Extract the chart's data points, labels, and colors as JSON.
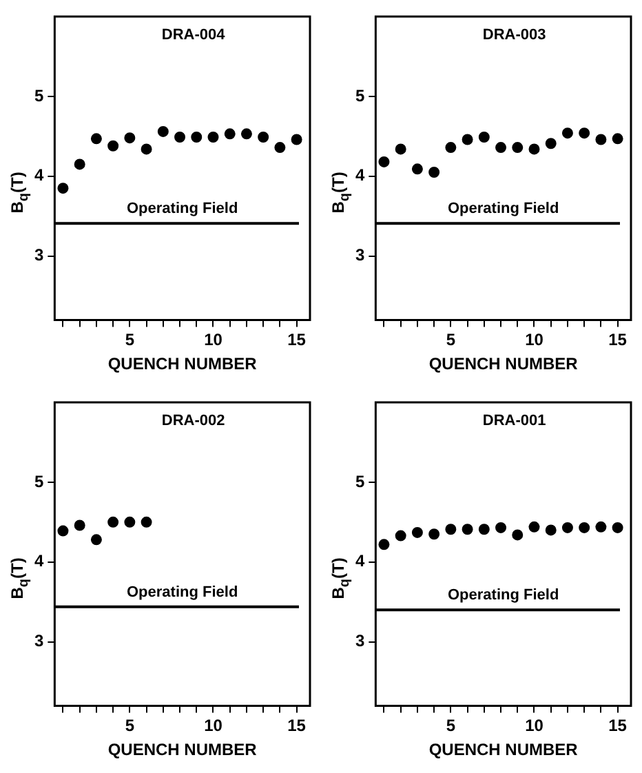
{
  "chart_data": [
    {
      "type": "scatter",
      "title": "DRA-004",
      "xlabel": "QUENCH NUMBER",
      "ylabel": "B$_{q}$(T)",
      "marker": "circle",
      "grid": false,
      "legend": false,
      "x": [
        1,
        2,
        3,
        4,
        5,
        6,
        7,
        8,
        9,
        10,
        11,
        12,
        13,
        14,
        15
      ],
      "series": [
        {
          "color": "#000000",
          "values": [
            3.85,
            4.15,
            4.47,
            4.38,
            4.48,
            4.34,
            4.56,
            4.49,
            4.49,
            4.49,
            4.53,
            4.53,
            4.49,
            4.36,
            4.46
          ]
        }
      ],
      "xlim": [
        0.5,
        15.8
      ],
      "ylim": [
        2.2,
        6.0
      ],
      "yticks": [
        3,
        4,
        5
      ],
      "xticks": [
        {
          "value": 1,
          "label": null
        },
        {
          "value": 2,
          "label": null
        },
        {
          "value": 3,
          "label": null
        },
        {
          "value": 4,
          "label": null
        },
        5,
        {
          "value": 6,
          "label": null
        },
        {
          "value": 7,
          "label": null
        },
        {
          "value": 8,
          "label": null
        },
        {
          "value": 9,
          "label": null
        },
        10,
        {
          "value": 11,
          "label": null
        },
        {
          "value": 12,
          "label": null
        },
        {
          "value": 13,
          "label": null
        },
        {
          "value": 14,
          "label": null
        },
        15
      ],
      "ref_lines": [
        {
          "axis": "y",
          "value": 3.41,
          "label": "Operating Field",
          "color": "#000000",
          "line_style": "solid"
        }
      ]
    },
    {
      "type": "scatter",
      "title": "DRA-003",
      "xlabel": "QUENCH NUMBER",
      "ylabel": "B$_{q}$(T)",
      "marker": "circle",
      "grid": false,
      "legend": false,
      "x": [
        1,
        2,
        3,
        4,
        5,
        6,
        7,
        8,
        9,
        10,
        11,
        12,
        13,
        14,
        15
      ],
      "series": [
        {
          "color": "#000000",
          "values": [
            4.18,
            4.34,
            4.09,
            4.05,
            4.36,
            4.46,
            4.49,
            4.36,
            4.36,
            4.34,
            4.41,
            4.54,
            4.54,
            4.46,
            4.47
          ]
        }
      ],
      "xlim": [
        0.5,
        15.8
      ],
      "ylim": [
        2.2,
        6.0
      ],
      "yticks": [
        3,
        4,
        5
      ],
      "xticks": [
        {
          "value": 1,
          "label": null
        },
        {
          "value": 2,
          "label": null
        },
        {
          "value": 3,
          "label": null
        },
        {
          "value": 4,
          "label": null
        },
        5,
        {
          "value": 6,
          "label": null
        },
        {
          "value": 7,
          "label": null
        },
        {
          "value": 8,
          "label": null
        },
        {
          "value": 9,
          "label": null
        },
        10,
        {
          "value": 11,
          "label": null
        },
        {
          "value": 12,
          "label": null
        },
        {
          "value": 13,
          "label": null
        },
        {
          "value": 14,
          "label": null
        },
        15
      ],
      "ref_lines": [
        {
          "axis": "y",
          "value": 3.41,
          "label": "Operating Field",
          "color": "#000000",
          "line_style": "solid"
        }
      ]
    },
    {
      "type": "scatter",
      "title": "DRA-002",
      "xlabel": "QUENCH NUMBER",
      "ylabel": "B$_{q}$(T)",
      "marker": "circle",
      "grid": false,
      "legend": false,
      "x": [
        1,
        2,
        3,
        4,
        5,
        6
      ],
      "series": [
        {
          "color": "#000000",
          "values": [
            4.39,
            4.46,
            4.28,
            4.5,
            4.5,
            4.5
          ]
        }
      ],
      "xlim": [
        0.5,
        15.8
      ],
      "ylim": [
        2.2,
        6.0
      ],
      "yticks": [
        3,
        4,
        5
      ],
      "xticks": [
        {
          "value": 1,
          "label": null
        },
        {
          "value": 2,
          "label": null
        },
        {
          "value": 3,
          "label": null
        },
        {
          "value": 4,
          "label": null
        },
        5,
        {
          "value": 6,
          "label": null
        },
        {
          "value": 7,
          "label": null
        },
        {
          "value": 8,
          "label": null
        },
        {
          "value": 9,
          "label": null
        },
        10,
        {
          "value": 11,
          "label": null
        },
        {
          "value": 12,
          "label": null
        },
        {
          "value": 13,
          "label": null
        },
        {
          "value": 14,
          "label": null
        },
        15
      ],
      "ref_lines": [
        {
          "axis": "y",
          "value": 3.44,
          "label": "Operating Field",
          "color": "#000000",
          "line_style": "solid"
        }
      ]
    },
    {
      "type": "scatter",
      "title": "DRA-001",
      "xlabel": "QUENCH NUMBER",
      "ylabel": "B$_{q}$(T)",
      "marker": "circle",
      "grid": false,
      "legend": false,
      "x": [
        1,
        2,
        3,
        4,
        5,
        6,
        7,
        8,
        9,
        10,
        11,
        12,
        13,
        14,
        15
      ],
      "series": [
        {
          "color": "#000000",
          "values": [
            4.22,
            4.33,
            4.37,
            4.35,
            4.41,
            4.41,
            4.41,
            4.43,
            4.34,
            4.44,
            4.4,
            4.43,
            4.43,
            4.44,
            4.43
          ]
        }
      ],
      "xlim": [
        0.5,
        15.8
      ],
      "ylim": [
        2.2,
        6.0
      ],
      "yticks": [
        3,
        4,
        5
      ],
      "xticks": [
        {
          "value": 1,
          "label": null
        },
        {
          "value": 2,
          "label": null
        },
        {
          "value": 3,
          "label": null
        },
        {
          "value": 4,
          "label": null
        },
        5,
        {
          "value": 6,
          "label": null
        },
        {
          "value": 7,
          "label": null
        },
        {
          "value": 8,
          "label": null
        },
        {
          "value": 9,
          "label": null
        },
        10,
        {
          "value": 11,
          "label": null
        },
        {
          "value": 12,
          "label": null
        },
        {
          "value": 13,
          "label": null
        },
        {
          "value": 14,
          "label": null
        },
        15
      ],
      "ref_lines": [
        {
          "axis": "y",
          "value": 3.4,
          "label": "Operating Field",
          "color": "#000000",
          "line_style": "solid"
        }
      ]
    }
  ]
}
